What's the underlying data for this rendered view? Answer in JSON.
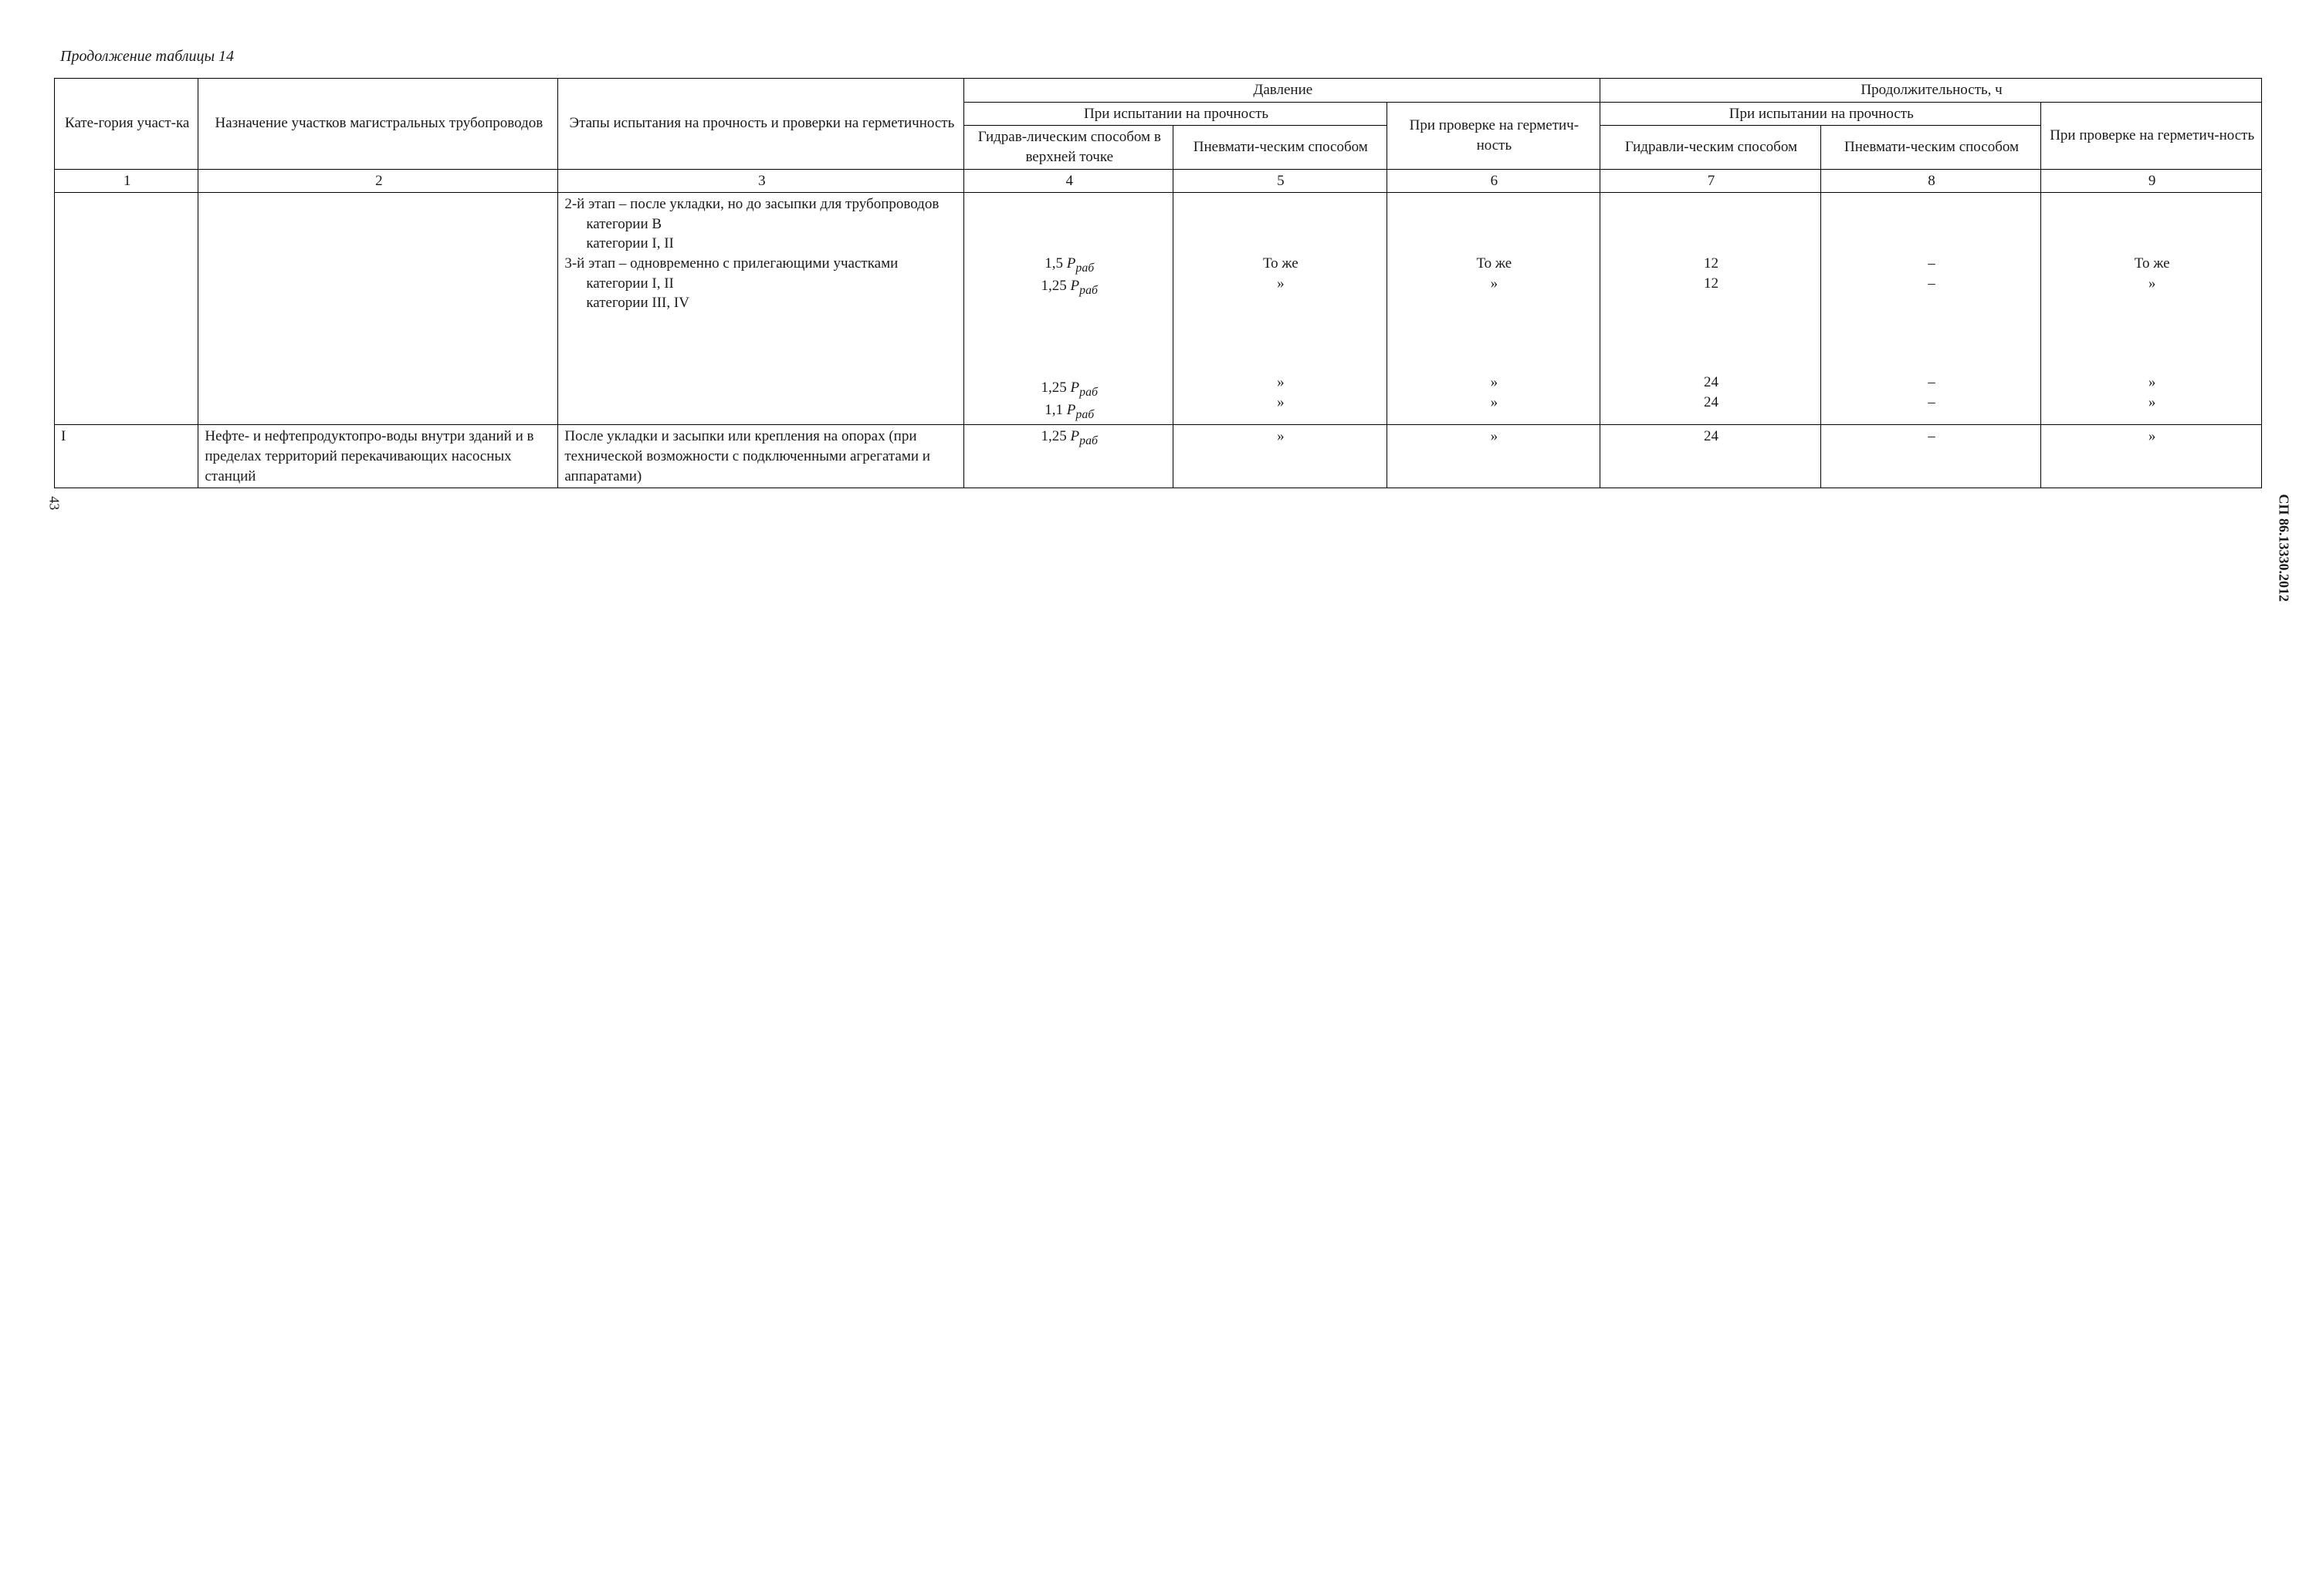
{
  "caption": "Продолжение таблицы 14",
  "doc_id": "СП 86.13330.2012",
  "page_number": "43",
  "header": {
    "col1": "Кате-гория участ-ка",
    "col2": "Назначение участков магистральных трубопроводов",
    "col3": "Этапы испытания на прочность и проверки на герметичность",
    "pressure_group": "Давление",
    "duration_group": "Продолжительность, ч",
    "strength_test": "При испытании на прочность",
    "tightness_check": "При проверке на герметич-ность",
    "hydraulic_upper": "Гидрав-лическим способом в верхней точке",
    "pneumatic": "Пневмати-ческим способом",
    "hydraulic": "Гидравли-ческим способом",
    "colnums": [
      "1",
      "2",
      "3",
      "4",
      "5",
      "6",
      "7",
      "8",
      "9"
    ]
  },
  "block1": {
    "stage2_label": "2-й этап – после укладки, но до засыпки для трубопроводов",
    "catB_label": "категории В",
    "catI_II_label": "категории I, II",
    "stage3_label": "3-й этап – одновременно с прилегающими участками",
    "catIII_IV_label": "категории III, IV",
    "vals": {
      "catB_p": "1,5 ",
      "catI_II_p": "1,25 ",
      "catI_II_b_p": "1,25 ",
      "catIII_IV_p": "1,1 ",
      "p_symbol": "P",
      "p_sub": "раб",
      "same": "То же",
      "ditto": "»",
      "dash": "–",
      "t12": "12",
      "t24": "24"
    }
  },
  "row2": {
    "cat": "I",
    "purpose": "Нефте- и нефтепродуктопро-воды внутри зданий и в пределах территорий перекачивающих насосных станций",
    "stage": "После укладки и засыпки или крепления на опорах (при технической возможности с подключенными агрегатами и аппаратами)",
    "p_prefix": "1,25 ",
    "p_symbol": "P",
    "p_sub": "раб",
    "ditto": "»",
    "dash": "–",
    "t24": "24"
  }
}
